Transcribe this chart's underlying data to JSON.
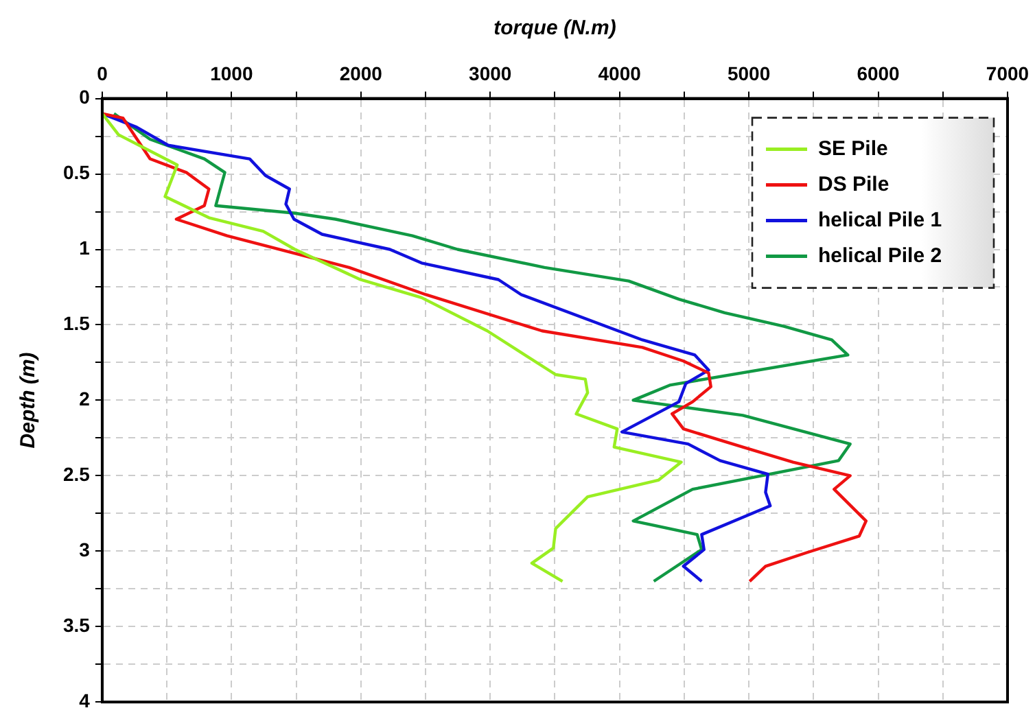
{
  "chart_data": {
    "type": "line",
    "xlabel": "torque (N.m)",
    "ylabel": "Depth (m)",
    "xlim": [
      0,
      7000
    ],
    "xticks": [
      0,
      {
        "value": 500,
        "label": null
      },
      1000,
      {
        "value": 1500,
        "label": null
      },
      2000,
      {
        "value": 2500,
        "label": null
      },
      3000,
      {
        "value": 3500,
        "label": null
      },
      4000,
      {
        "value": 4500,
        "label": null
      },
      5000,
      {
        "value": 5500,
        "label": null
      },
      6000,
      {
        "value": 6500,
        "label": null
      },
      7000
    ],
    "ylim": [
      4,
      0
    ],
    "yticks": [
      0,
      {
        "value": 0.25,
        "label": null
      },
      0.5,
      {
        "value": 0.75,
        "label": null
      },
      1,
      {
        "value": 1.25,
        "label": null
      },
      1.5,
      {
        "value": 1.75,
        "label": null
      },
      2,
      {
        "value": 2.25,
        "label": null
      },
      2.5,
      {
        "value": 2.75,
        "label": null
      },
      3,
      {
        "value": 3.25,
        "label": null
      },
      3.5,
      {
        "value": 3.75,
        "label": null
      },
      4
    ],
    "grid": true,
    "legend": "top right",
    "marker": "none",
    "line_style": "solid",
    "series": [
      {
        "name": "SE Pile",
        "color": "#99ee22",
        "x": [
          0,
          126,
          580,
          486,
          825,
          1245,
          1490,
          1996,
          2470,
          2977,
          3506,
          3735,
          3753,
          3665,
          3982,
          3958,
          4477,
          4300,
          3753,
          3506,
          3488,
          3322,
          3559
        ],
        "values": [
          0.1,
          0.24,
          0.44,
          0.65,
          0.79,
          0.88,
          1.0,
          1.2,
          1.32,
          1.54,
          1.83,
          1.86,
          1.95,
          2.09,
          2.19,
          2.31,
          2.41,
          2.53,
          2.64,
          2.85,
          2.98,
          3.08,
          3.2
        ]
      },
      {
        "name": "DS Pile",
        "color": "#ee1111",
        "x": [
          0,
          161,
          370,
          650,
          825,
          790,
          573,
          965,
          1909,
          2503,
          3400,
          4177,
          4494,
          4689,
          4706,
          4565,
          4406,
          4494,
          4953,
          5341,
          5783,
          5659,
          5906,
          5853,
          5447,
          5129,
          5006
        ],
        "values": [
          0.1,
          0.13,
          0.4,
          0.49,
          0.6,
          0.71,
          0.8,
          0.91,
          1.12,
          1.3,
          1.54,
          1.65,
          1.74,
          1.82,
          1.91,
          2.01,
          2.09,
          2.19,
          2.31,
          2.41,
          2.5,
          2.59,
          2.8,
          2.9,
          3.01,
          3.1,
          3.2
        ]
      },
      {
        "name": "helical Pile 1",
        "color": "#1111dd",
        "x": [
          0,
          266,
          510,
          1140,
          1262,
          1448,
          1420,
          1483,
          1700,
          2224,
          2469,
          3063,
          3240,
          4177,
          4582,
          4689,
          4512,
          4459,
          4018,
          4530,
          4777,
          5147,
          5129,
          5165,
          4635,
          4653,
          4494,
          4635
        ],
        "values": [
          0.1,
          0.19,
          0.31,
          0.4,
          0.51,
          0.6,
          0.7,
          0.8,
          0.9,
          1.0,
          1.09,
          1.2,
          1.3,
          1.6,
          1.7,
          1.8,
          1.89,
          2.01,
          2.21,
          2.29,
          2.4,
          2.49,
          2.61,
          2.7,
          2.89,
          2.99,
          3.1,
          3.2
        ]
      },
      {
        "name": "helical Pile 2",
        "color": "#119944",
        "x": [
          91,
          370,
          790,
          948,
          878,
          1490,
          1804,
          2398,
          2748,
          3420,
          4071,
          4459,
          4812,
          5271,
          5641,
          5765,
          4388,
          4106,
          4953,
          5783,
          5694,
          4565,
          4106,
          4600,
          4635,
          4441,
          4265
        ],
        "values": [
          0.1,
          0.27,
          0.4,
          0.49,
          0.71,
          0.76,
          0.8,
          0.91,
          1.0,
          1.12,
          1.21,
          1.33,
          1.42,
          1.51,
          1.6,
          1.7,
          1.9,
          2.0,
          2.1,
          2.29,
          2.4,
          2.59,
          2.8,
          2.89,
          2.99,
          3.1,
          3.2
        ]
      }
    ]
  }
}
